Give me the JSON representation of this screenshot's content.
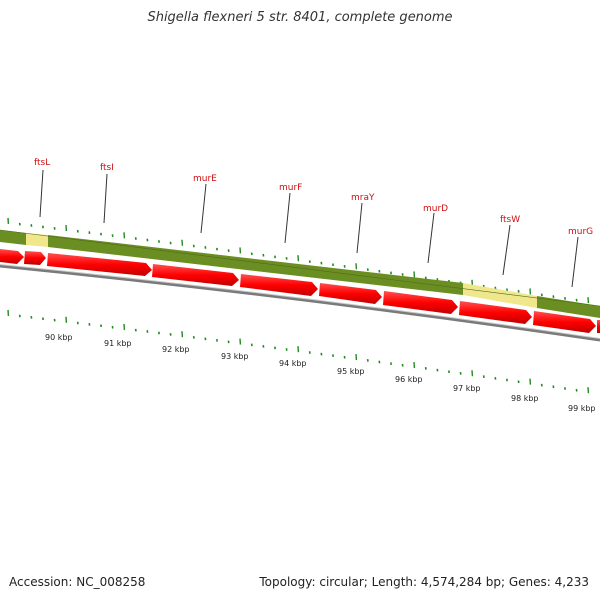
{
  "title": "Shigella flexneri 5 str. 8401, complete genome",
  "footer": {
    "accession": "Accession: NC_008258",
    "topology": "Topology: circular; Length: 4,574,284 bp; Genes: 4,233"
  },
  "genes": [
    "ftsL",
    "ftsI",
    "murE",
    "murF",
    "mraY",
    "murD",
    "ftsW",
    "murG"
  ],
  "scale": [
    "90 kbp",
    "91 kbp",
    "92 kbp",
    "93 kbp",
    "94 kbp",
    "95 kbp",
    "96 kbp",
    "97 kbp",
    "98 kbp",
    "99 kbp"
  ],
  "colors": {
    "gene_label": "#cc1111",
    "feature_green": "#6b8e23",
    "feature_yellow": "#f0e68c",
    "gene_arrow": "#ff0000",
    "backbone": "#888888",
    "tick_green": "#228b22"
  }
}
